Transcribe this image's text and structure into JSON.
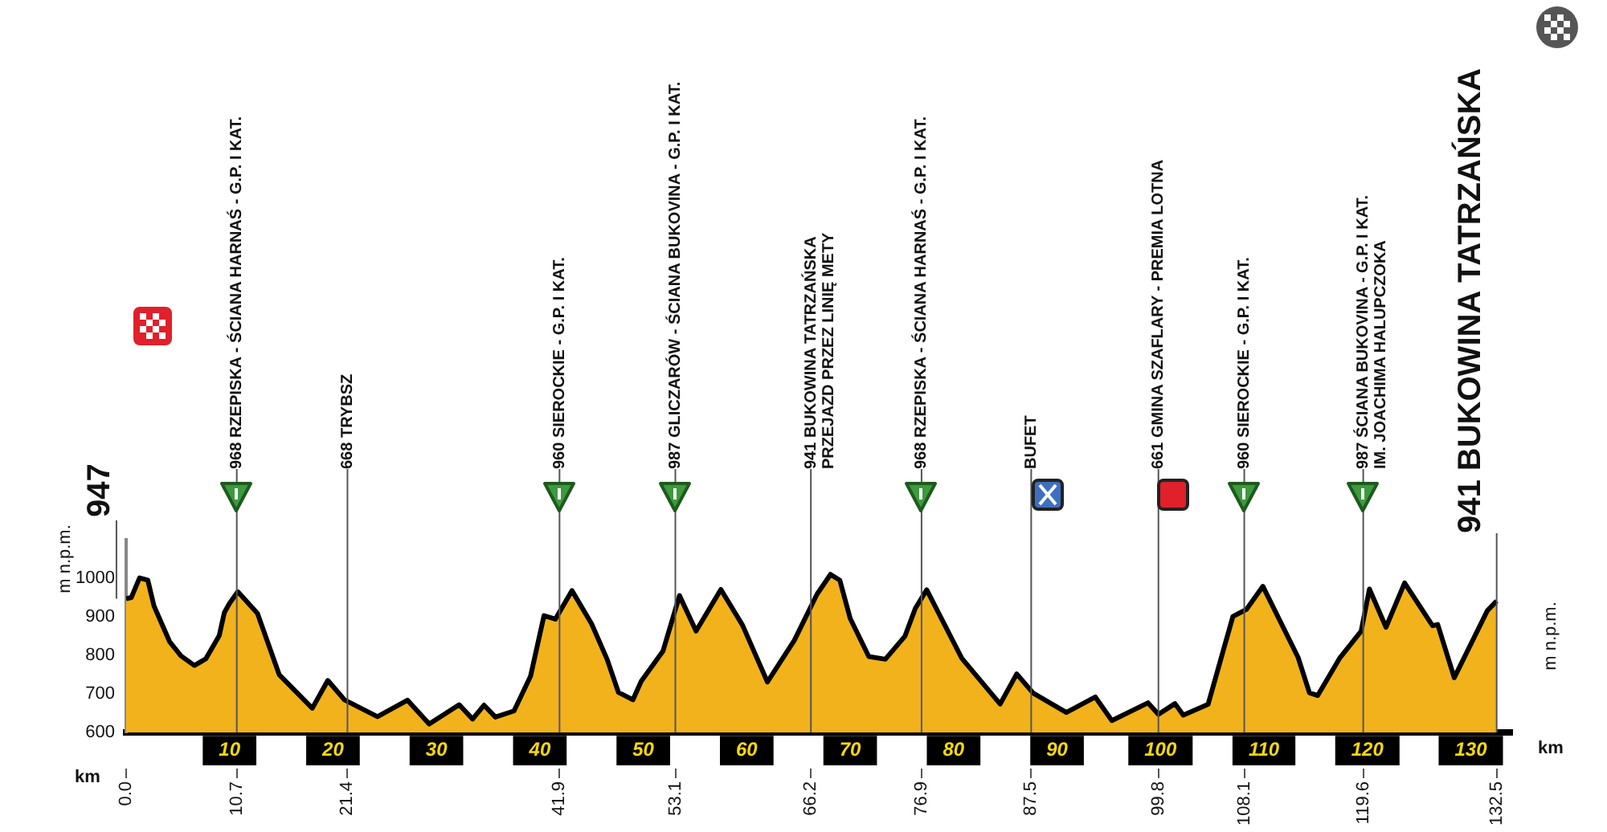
{
  "chart_data": {
    "type": "area",
    "xlabel": "km",
    "ylabel": "m n.p.m.",
    "x": [
      0,
      0.5,
      1.3,
      2.1,
      2.7,
      4.2,
      5.3,
      6.6,
      7.7,
      9.0,
      9.5,
      10.0,
      10.8,
      12.7,
      14.8,
      18.0,
      19.5,
      21.1,
      24.3,
      27.2,
      29.3,
      32.2,
      33.5,
      34.6,
      35.7,
      37.5,
      39.1,
      40.4,
      41.5,
      43.1,
      45.0,
      46.5,
      47.6,
      49.0,
      49.8,
      51.9,
      53.5,
      55.1,
      57.5,
      59.6,
      62.0,
      64.6,
      66.8,
      68.1,
      69.0,
      70.0,
      71.8,
      73.4,
      75.3,
      76.3,
      77.4,
      80.8,
      84.5,
      86.1,
      87.7,
      90.9,
      93.7,
      95.3,
      98.8,
      99.8,
      101.4,
      102.2,
      104.6,
      107.0,
      108.3,
      109.9,
      113.3,
      114.4,
      115.2,
      117.3,
      119.4,
      120.2,
      121.8,
      123.6,
      126.3,
      126.8,
      128.4,
      131.6,
      132.5
    ],
    "series": [
      {
        "color": "#f2b21c",
        "values": [
          947,
          950,
          1001,
          995,
          928,
          836,
          799,
          774,
          791,
          851,
          911,
          935,
          965,
          909,
          750,
          663,
          735,
          685,
          641,
          684,
          622,
          672,
          635,
          671,
          640,
          656,
          746,
          903,
          894,
          968,
          882,
          790,
          704,
          685,
          733,
          811,
          955,
          863,
          971,
          878,
          731,
          839,
          959,
          1010,
          995,
          896,
          797,
          790,
          850,
          922,
          970,
          792,
          674,
          752,
          702,
          652,
          692,
          631,
          677,
          647,
          675,
          645,
          673,
          901,
          919,
          979,
          795,
          703,
          696,
          792,
          863,
          972,
          873,
          988,
          877,
          880,
          742,
          916,
          941
        ]
      }
    ],
    "xlim": [
      0,
      134
    ],
    "annotations": [
      {
        "text": "947",
        "x": 0,
        "y": 947
      }
    ],
    "x2lim": [
      0,
      134
    ],
    "x2ticks": [
      {
        "value": 0,
        "label": "0.0"
      },
      10.7,
      21.4,
      41.9,
      53.1,
      66.2,
      76.9,
      87.5,
      99.8,
      108.1,
      119.6,
      132.5
    ],
    "xticks": [
      10,
      20,
      30,
      40,
      50,
      60,
      70,
      80,
      90,
      100,
      110,
      120,
      130
    ],
    "ylim": [
      600,
      1100
    ],
    "yticks": [
      600,
      700,
      800,
      900,
      1000
    ],
    "grid": false,
    "legend": false,
    "ref_lines": [
      {
        "axis": "x",
        "value": 10.7,
        "label": "968 RZEPISKA - ŚCIANA HARNAŚ - G.P. I KAT."
      },
      {
        "axis": "x",
        "value": 21.4,
        "label": "668 TRYBSZ"
      },
      {
        "axis": "x",
        "value": 41.9,
        "label": "960 SIEROCKIE - G.P. I KAT."
      },
      {
        "axis": "x",
        "value": 53.1,
        "label": "987 GLICZARÓW - ŚCIANA BUKOVINA - G.P. I KAT."
      },
      {
        "axis": "x",
        "value": 66.2,
        "label": "941 BUKOWINA TATRZAŃSKA\nPRZEJAZD PRZEZ LINIĘ METY"
      },
      {
        "axis": "x",
        "value": 76.9,
        "label": "968 RZEPISKA - ŚCIANA HARNAŚ - G.P. I KAT."
      },
      {
        "axis": "x",
        "value": 87.5,
        "label": "BUFET"
      },
      {
        "axis": "x",
        "value": 99.8,
        "label": "661 GMINA SZAFLARY - PREMIA LOTNA"
      },
      {
        "axis": "x",
        "value": 108.1,
        "label": "960 SIEROCKIE - G.P. I KAT."
      },
      {
        "axis": "x",
        "value": 119.6,
        "label": "987 ŚCIANA BUKOVINA - G.P. I KAT.\nIM. JOACHIMA HALUPCZOKA"
      },
      {
        "axis": "x",
        "value": 132.5,
        "label": "941 BUKOWINA TATRZAŃSKA"
      }
    ]
  }
}
